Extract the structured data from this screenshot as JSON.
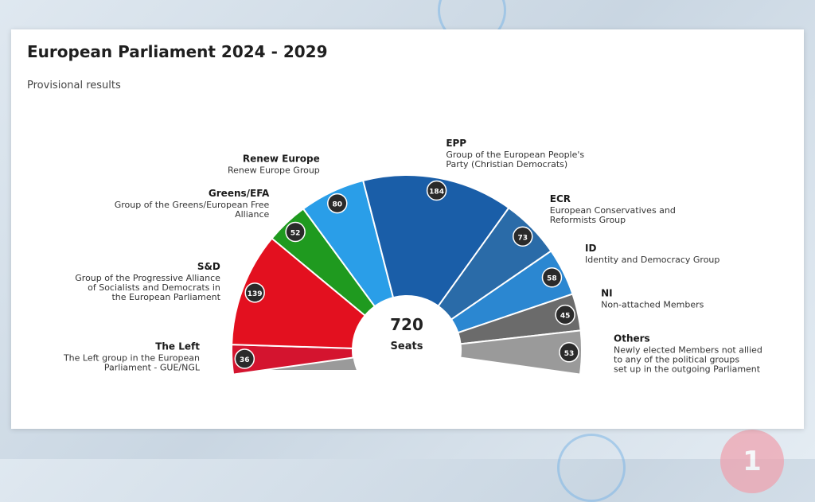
{
  "chart_data": {
    "type": "parliament-semicircle",
    "title": "European Parliament 2024 - 2029",
    "subtitle": "Provisional results",
    "total": {
      "value": "720",
      "label": "Seats"
    },
    "series": [
      {
        "abbr": "The Left",
        "name": "The Left group in the European Parliament - GUE/NGL",
        "name_lines": [
          "The Left group in the European",
          "Parliament - GUE/NGL"
        ],
        "seats": 36,
        "color": "#d4142f"
      },
      {
        "abbr": "S&D",
        "name": "Group of the Progressive Alliance of Socialists and Democrats in the European Parliament",
        "name_lines": [
          "Group of the Progressive Alliance",
          "of Socialists and Democrats in",
          "the European Parliament"
        ],
        "seats": 139,
        "color": "#e3101f"
      },
      {
        "abbr": "Greens/EFA",
        "name": "Group of the Greens/European Free Alliance",
        "name_lines": [
          "Group of the Greens/European Free",
          "Alliance"
        ],
        "seats": 52,
        "color": "#1f9a1f"
      },
      {
        "abbr": "Renew Europe",
        "name": "Renew Europe Group",
        "name_lines": [
          "Renew Europe Group"
        ],
        "seats": 80,
        "color": "#2a9ee8"
      },
      {
        "abbr": "EPP",
        "name": "Group of the European People's Party (Christian Democrats)",
        "name_lines": [
          "Group of the European People's",
          "Party (Christian Democrats)"
        ],
        "seats": 184,
        "color": "#1a5ea8"
      },
      {
        "abbr": "ECR",
        "name": "European Conservatives and Reformists Group",
        "name_lines": [
          "European Conservatives and",
          "Reformists Group"
        ],
        "seats": 73,
        "color": "#2a6ba8"
      },
      {
        "abbr": "ID",
        "name": "Identity and Democracy Group",
        "name_lines": [
          "Identity and Democracy Group"
        ],
        "seats": 58,
        "color": "#2b87d1"
      },
      {
        "abbr": "NI",
        "name": "Non-attached Members",
        "name_lines": [
          "Non-attached Members"
        ],
        "seats": 45,
        "color": "#6b6b6b"
      },
      {
        "abbr": "Others",
        "name": "Newly elected Members not allied to any of the political groups set up in the outgoing Parliament",
        "name_lines": [
          "Newly elected Members not allied",
          "to any of the political groups",
          "set up in the outgoing Parliament"
        ],
        "seats": 53,
        "color": "#9a9a9a"
      }
    ],
    "left_gray_band": {
      "color": "#9a9a9a"
    },
    "legend": "labels-around-chart"
  }
}
